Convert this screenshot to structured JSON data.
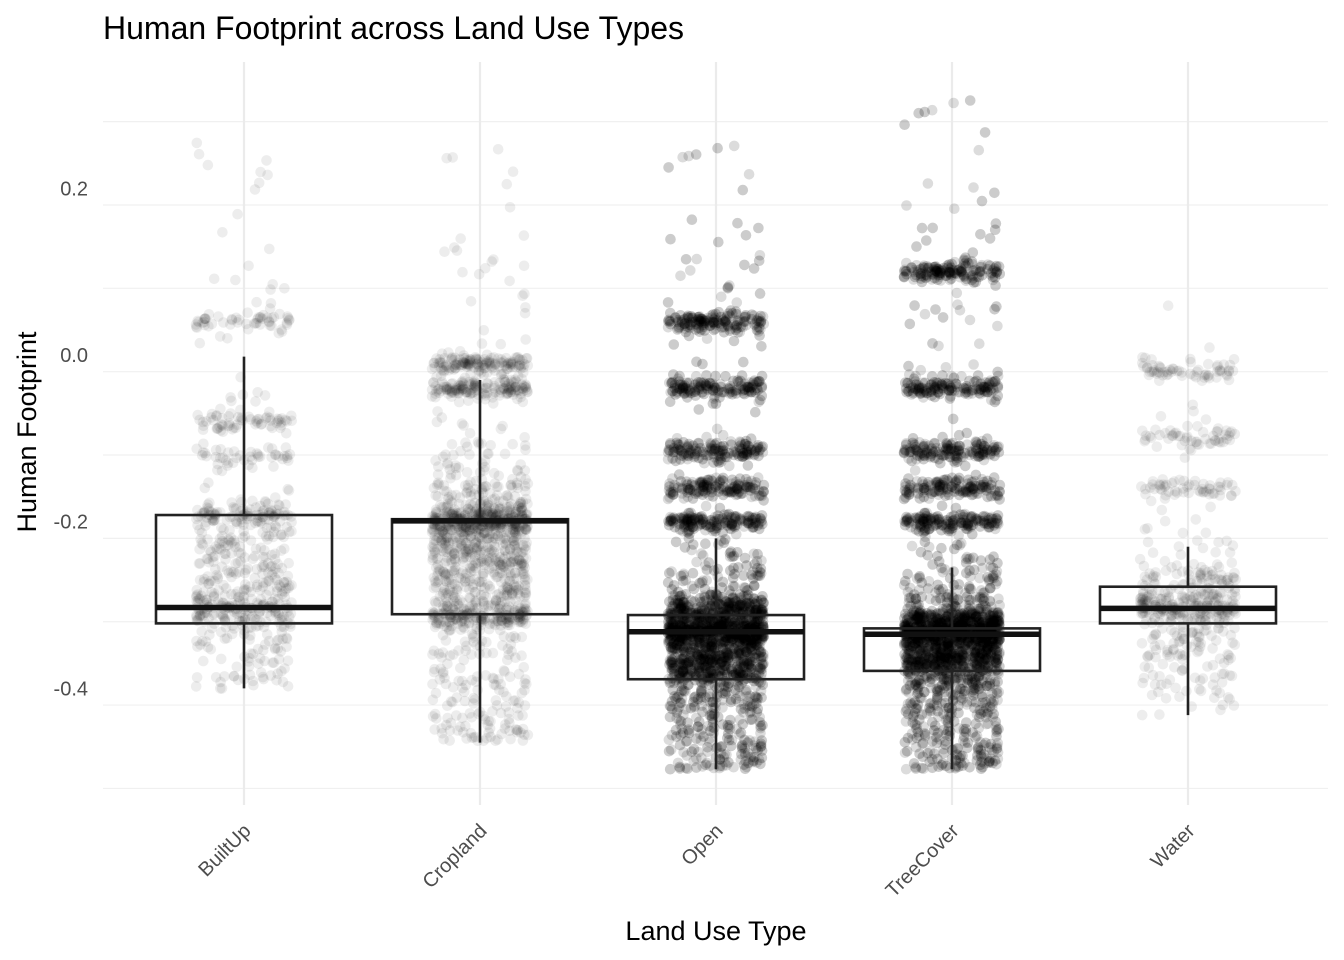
{
  "chart_data": {
    "type": "boxplot",
    "title": "Human Footprint across Land Use Types",
    "xlabel": "Land Use Type",
    "ylabel": "Human Footprint",
    "categories": [
      "BuiltUp",
      "Cropland",
      "Open",
      "TreeCover",
      "Water"
    ],
    "ylim": [
      -0.52,
      0.33
    ],
    "yticks": [
      {
        "value": -0.4,
        "label": "-0.4"
      },
      {
        "value": -0.2,
        "label": "-0.2"
      },
      {
        "value": 0.0,
        "label": "0.0"
      },
      {
        "value": 0.2,
        "label": "0.2"
      }
    ],
    "boxes": [
      {
        "category": "BuiltUp",
        "whisker_low": -0.4,
        "q1": -0.322,
        "median": -0.303,
        "q3": -0.192,
        "whisker_high": -0.002
      },
      {
        "category": "Cropland",
        "whisker_low": -0.465,
        "q1": -0.311,
        "median": -0.199,
        "q3": -0.197,
        "whisker_high": -0.03
      },
      {
        "category": "Open",
        "whisker_low": -0.497,
        "q1": -0.389,
        "median": -0.332,
        "q3": -0.312,
        "whisker_high": -0.22
      },
      {
        "category": "TreeCover",
        "whisker_low": -0.497,
        "q1": -0.379,
        "median": -0.335,
        "q3": -0.328,
        "whisker_high": -0.255
      },
      {
        "category": "Water",
        "whisker_low": -0.432,
        "q1": -0.322,
        "median": -0.304,
        "q3": -0.278,
        "whisker_high": -0.23
      }
    ],
    "points": {
      "style": "jittered raw observations, semi-transparent black",
      "density": [
        {
          "category": "BuiltUp",
          "n": 700,
          "y_range": [
            -0.4,
            0.265
          ],
          "clusters": [
            -0.305,
            -0.195,
            -0.12,
            -0.08,
            0.04
          ]
        },
        {
          "category": "Cropland",
          "n": 1600,
          "y_range": [
            -0.465,
            0.25
          ],
          "clusters": [
            -0.315,
            -0.2,
            -0.04,
            -0.01
          ]
        },
        {
          "category": "Open",
          "n": 6000,
          "y_range": [
            -0.497,
            0.255
          ],
          "clusters": [
            -0.33,
            -0.2,
            -0.16,
            -0.115,
            -0.04,
            0.04
          ]
        },
        {
          "category": "TreeCover",
          "n": 6000,
          "y_range": [
            -0.497,
            0.31
          ],
          "clusters": [
            -0.33,
            -0.2,
            -0.16,
            -0.115,
            -0.04,
            0.1
          ]
        },
        {
          "category": "Water",
          "n": 600,
          "y_range": [
            -0.432,
            0.068
          ],
          "clusters": [
            -0.305,
            -0.16,
            -0.1,
            -0.02
          ]
        }
      ]
    },
    "grid": true,
    "legend": "none"
  }
}
